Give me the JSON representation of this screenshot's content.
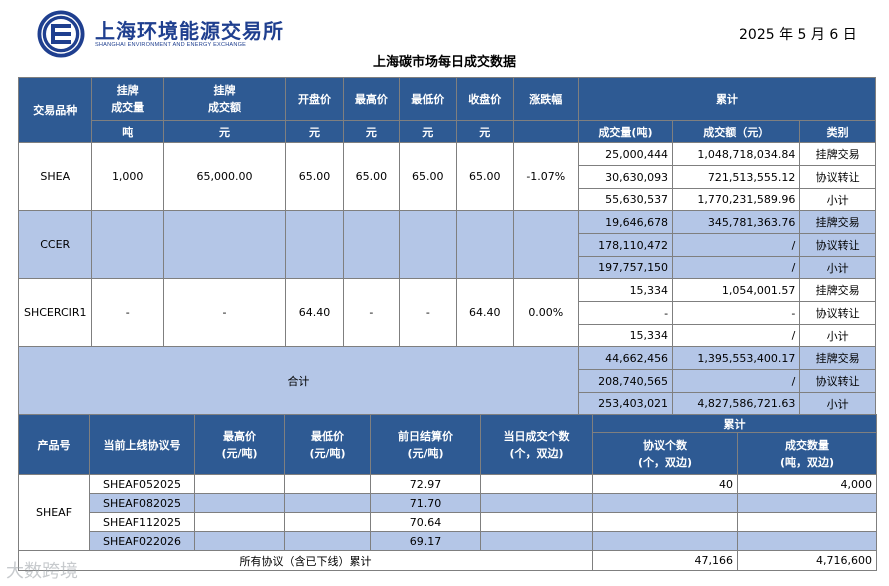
{
  "header": {
    "org_name_cn": "上海环境能源交易所",
    "org_name_en": "SHANGHAI ENVIRONMENT AND ENERGY EXCHANGE",
    "date": "2025 年 5 月 6 日",
    "title": "上海碳市场每日成交数据"
  },
  "colors": {
    "header_bg": "#2e5a93",
    "band_bg": "#b4c6e7",
    "border": "#7f7f7f",
    "logo": "#1f3f8f"
  },
  "t1": {
    "headers": {
      "variety": "交易品种",
      "listed_volume": [
        "挂牌",
        "成交量"
      ],
      "listed_amount": [
        "挂牌",
        "成交额"
      ],
      "open": "开盘价",
      "high": "最高价",
      "low": "最低价",
      "close": "收盘价",
      "change": "涨跌幅",
      "cumulative": "累计"
    },
    "units": {
      "volume": "吨",
      "amount": "元",
      "open": "元",
      "high": "元",
      "low": "元",
      "close": "元",
      "cum_volume": "成交量(吨)",
      "cum_amount": "成交额（元）",
      "category": "类别"
    },
    "products": [
      {
        "name": "SHEA",
        "volume": "1,000",
        "amount": "65,000.00",
        "open": "65.00",
        "high": "65.00",
        "low": "65.00",
        "close": "65.00",
        "change": "-1.07%",
        "rows": [
          {
            "vol": "25,000,444",
            "amt": "1,048,718,034.84",
            "cat": "挂牌交易"
          },
          {
            "vol": "30,630,093",
            "amt": "721,513,555.12",
            "cat": "协议转让"
          },
          {
            "vol": "55,630,537",
            "amt": "1,770,231,589.96",
            "cat": "小计"
          }
        ]
      },
      {
        "name": "CCER",
        "volume": "",
        "amount": "",
        "open": "",
        "high": "",
        "low": "",
        "close": "",
        "change": "",
        "rows": [
          {
            "vol": "19,646,678",
            "amt": "345,781,363.76",
            "cat": "挂牌交易"
          },
          {
            "vol": "178,110,472",
            "amt": "/",
            "cat": "协议转让"
          },
          {
            "vol": "197,757,150",
            "amt": "/",
            "cat": "小计"
          }
        ]
      },
      {
        "name": "SHCERCIR1",
        "volume": "-",
        "amount": "-",
        "open": "64.40",
        "high": "-",
        "low": "-",
        "close": "64.40",
        "change": "0.00%",
        "rows": [
          {
            "vol": "15,334",
            "amt": "1,054,001.57",
            "cat": "挂牌交易"
          },
          {
            "vol": "-",
            "amt": "-",
            "cat": "协议转让"
          },
          {
            "vol": "15,334",
            "amt": "/",
            "cat": "小计"
          }
        ]
      }
    ],
    "total": {
      "label": "合计",
      "rows": [
        {
          "vol": "44,662,456",
          "amt": "1,395,553,400.17",
          "cat": "挂牌交易"
        },
        {
          "vol": "208,740,565",
          "amt": "/",
          "cat": "协议转让"
        },
        {
          "vol": "253,403,021",
          "amt": "4,827,586,721.63",
          "cat": "小计"
        }
      ]
    }
  },
  "t2": {
    "headers": {
      "product": "产品号",
      "agreement": "当前上线协议号",
      "high": [
        "最高价",
        "(元/吨)"
      ],
      "low": [
        "最低价",
        "(元/吨)"
      ],
      "prev_settle": [
        "前日结算价",
        "(元/吨)"
      ],
      "day_count": [
        "当日成交个数",
        "(个，双边)"
      ],
      "cumulative": "累计",
      "cum_count": [
        "协议个数",
        "(个，双边)"
      ],
      "cum_volume": [
        "成交数量",
        "(吨，双边)"
      ]
    },
    "product": "SHEAF",
    "rows": [
      {
        "code": "SHEAF052025",
        "high": "",
        "low": "",
        "settle": "72.97",
        "count": "",
        "cum_count": "40",
        "cum_volume": "4,000"
      },
      {
        "code": "SHEAF082025",
        "high": "",
        "low": "",
        "settle": "71.70",
        "count": "",
        "cum_count": "",
        "cum_volume": ""
      },
      {
        "code": "SHEAF112025",
        "high": "",
        "low": "",
        "settle": "70.64",
        "count": "",
        "cum_count": "",
        "cum_volume": ""
      },
      {
        "code": "SHEAF022026",
        "high": "",
        "low": "",
        "settle": "69.17",
        "count": "",
        "cum_count": "",
        "cum_volume": ""
      }
    ],
    "total": {
      "label": "所有协议（含已下线）累计",
      "cum_count": "47,166",
      "cum_volume": "4,716,600"
    }
  },
  "watermark": "大数跨境"
}
